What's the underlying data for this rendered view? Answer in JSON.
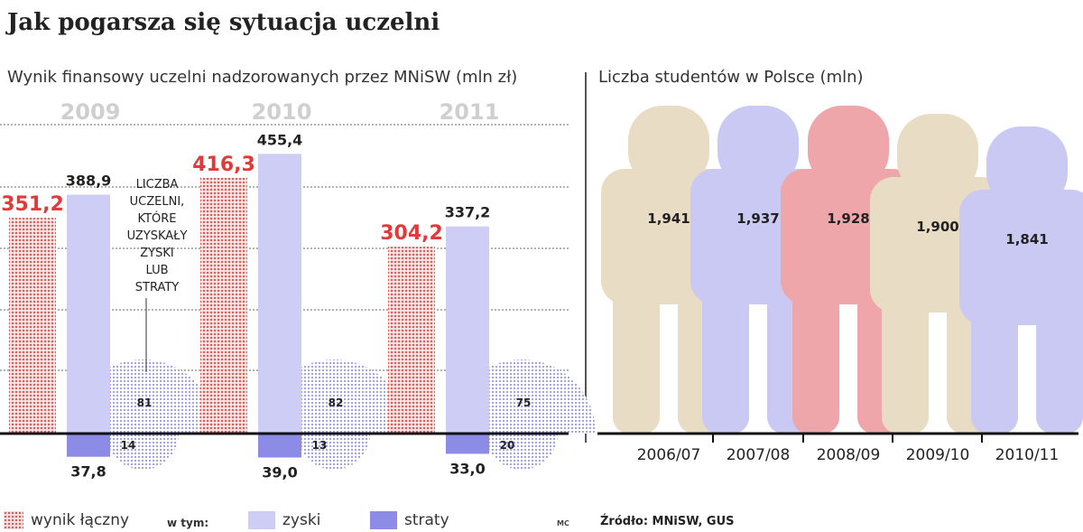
{
  "header": {
    "title": "Jak pogarsza się sytuacja uczelni",
    "left_subtitle": "Wynik finansowy uczelni nadzorowanych przez MNiSW (mln zł)",
    "right_subtitle": "Liczba studentów w Polsce (mln)"
  },
  "legend": {
    "total": "wynik łączny",
    "w_tym": "w tym:",
    "zyski": "zyski",
    "straty": "straty"
  },
  "annotation": [
    "LICZBA",
    "UCZELNI,",
    "KTÓRE",
    "UZYSKAŁY",
    "ZYSKI",
    "LUB",
    "STRATY"
  ],
  "footer": {
    "initials": "MC",
    "source": "Źródło: MNiSW, GUS"
  },
  "chart_data": [
    {
      "type": "bar",
      "title": "Wynik finansowy uczelni nadzorowanych przez MNiSW (mln zł)",
      "categories": [
        "2009",
        "2010",
        "2011"
      ],
      "series": [
        {
          "name": "wynik łączny",
          "values": [
            351.2,
            416.3,
            304.2
          ],
          "labels": [
            "351,2",
            "416,3",
            "304,2"
          ],
          "color": "#e45a5a"
        },
        {
          "name": "zyski",
          "values": [
            388.9,
            455.4,
            337.2
          ],
          "labels": [
            "388,9",
            "455,4",
            "337,2"
          ],
          "color": "#cdcdf5"
        },
        {
          "name": "straty",
          "values": [
            -37.8,
            -39.0,
            -33.0
          ],
          "labels": [
            "37,8",
            "39,0",
            "33,0"
          ],
          "color": "#8c8ce6"
        }
      ],
      "counts": {
        "zyski": [
          81,
          82,
          75
        ],
        "straty": [
          14,
          13,
          20
        ]
      },
      "ylim": [
        -60,
        500
      ],
      "grid": true
    },
    {
      "type": "bar",
      "title": "Liczba studentów w Polsce (mln)",
      "categories": [
        "2006/07",
        "2007/08",
        "2008/09",
        "2009/10",
        "2010/11"
      ],
      "values": [
        1.941,
        1.937,
        1.928,
        1.9,
        1.841
      ],
      "labels": [
        "1,941",
        "1,937",
        "1,928",
        "1,900",
        "1,841"
      ],
      "colors": [
        "#e9dcc4",
        "#c9c9f4",
        "#eea6ab",
        "#e9dcc4",
        "#c9c9f4"
      ]
    }
  ]
}
